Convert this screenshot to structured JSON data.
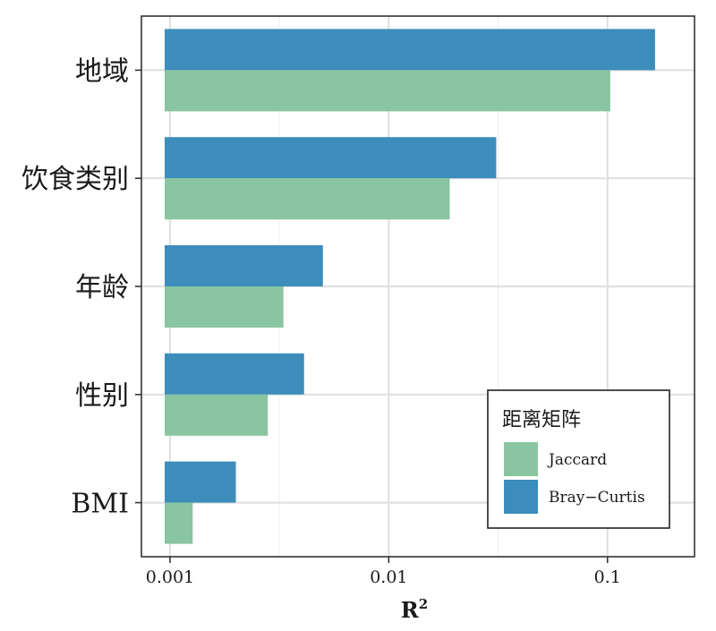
{
  "chart_data": {
    "type": "bar",
    "orientation": "horizontal",
    "x_scale": "log",
    "xlim": [
      0.00074,
      0.25
    ],
    "xticks": [
      0.001,
      0.01,
      0.1
    ],
    "xtick_labels": [
      "0.001",
      "0.01",
      "0.1"
    ],
    "xlabel": "R",
    "xlabel_superscript": "2",
    "grid": true,
    "categories": [
      "地域",
      "饮食类别",
      "年龄",
      "性别",
      "BMI"
    ],
    "series": [
      {
        "name": "Bray−Curtis",
        "color": "#3c8dbc",
        "values": [
          0.165,
          0.031,
          0.005,
          0.0041,
          0.002
        ]
      },
      {
        "name": "Jaccard",
        "color": "#88c5a0",
        "values": [
          0.103,
          0.019,
          0.0033,
          0.0028,
          0.00127
        ]
      }
    ],
    "legend": {
      "title": "距离矩阵",
      "placement": "bottom-right",
      "order": [
        "Jaccard",
        "Bray−Curtis"
      ]
    }
  }
}
